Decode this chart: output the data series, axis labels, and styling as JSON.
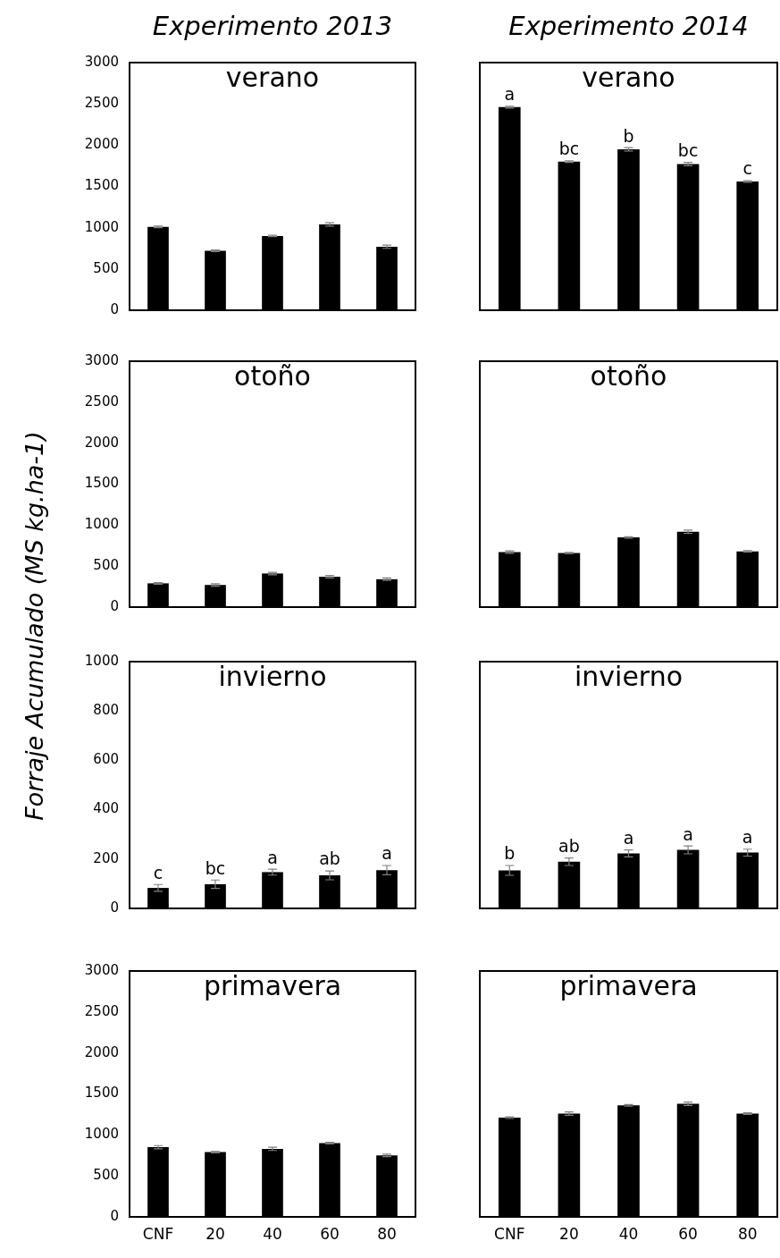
{
  "chart_data": [
    {
      "type": "bar",
      "title": "Experimento 2013",
      "subtitle": "verano",
      "categories": [
        "CNF",
        "20",
        "40",
        "60",
        "80"
      ],
      "values": [
        1010,
        720,
        900,
        1040,
        770
      ],
      "errors": [
        10,
        10,
        8,
        20,
        20
      ],
      "color": "#000000",
      "ylim": [
        0,
        3000
      ],
      "yticks": [
        0,
        500,
        1000,
        1500,
        2000,
        2500,
        3000
      ],
      "tick_labels": "y"
    },
    {
      "type": "bar",
      "title": "Experimento 2014",
      "subtitle": "verano",
      "categories": [
        "CNF",
        "20",
        "40",
        "60",
        "80"
      ],
      "values": [
        2460,
        1800,
        1950,
        1770,
        1560
      ],
      "errors": [
        10,
        10,
        20,
        20,
        10
      ],
      "value_labels": [
        "a",
        "bc",
        "b",
        "bc",
        "c"
      ],
      "color": "#000000",
      "ylim": [
        0,
        3000
      ],
      "yticks": [
        0,
        500,
        1000,
        1500,
        2000,
        2500,
        3000
      ],
      "tick_labels": false
    },
    {
      "type": "bar",
      "title": "otoño",
      "categories": [
        "CNF",
        "20",
        "40",
        "60",
        "80"
      ],
      "values": [
        290,
        270,
        410,
        370,
        340
      ],
      "errors": [
        10,
        15,
        15,
        15,
        15
      ],
      "color": "#000000",
      "ylim": [
        0,
        3000
      ],
      "yticks": [
        0,
        500,
        1000,
        1500,
        2000,
        2500,
        3000
      ],
      "tick_labels": "y"
    },
    {
      "type": "bar",
      "title": "otoño",
      "categories": [
        "CNF",
        "20",
        "40",
        "60",
        "80"
      ],
      "values": [
        670,
        660,
        850,
        920,
        680
      ],
      "errors": [
        15,
        8,
        8,
        20,
        8
      ],
      "color": "#000000",
      "ylim": [
        0,
        3000
      ],
      "yticks": [
        0,
        500,
        1000,
        1500,
        2000,
        2500,
        3000
      ],
      "tick_labels": false
    },
    {
      "type": "bar",
      "title": "invierno",
      "ylabel": "Forraje Acumulado (MS kg.ha-1)",
      "categories": [
        "CNF",
        "20",
        "40",
        "60",
        "80"
      ],
      "values": [
        83,
        98,
        147,
        134,
        155
      ],
      "errors": [
        14,
        17,
        12,
        18,
        19
      ],
      "value_labels": [
        "c",
        "bc",
        "a",
        "ab",
        "a"
      ],
      "color": "#000000",
      "ylim": [
        0,
        1000
      ],
      "yticks": [
        0,
        200,
        400,
        600,
        800,
        1000
      ],
      "tick_labels": "y"
    },
    {
      "type": "bar",
      "title": "invierno",
      "categories": [
        "CNF",
        "20",
        "40",
        "60",
        "80"
      ],
      "values": [
        154,
        189,
        223,
        237,
        226
      ],
      "errors": [
        20,
        15,
        14,
        16,
        14
      ],
      "value_labels": [
        "b",
        "ab",
        "a",
        "a",
        "a"
      ],
      "color": "#000000",
      "ylim": [
        0,
        1000
      ],
      "yticks": [
        0,
        200,
        400,
        600,
        800,
        1000
      ],
      "tick_labels": false
    },
    {
      "type": "bar",
      "title": "primavera",
      "categories": [
        "CNF",
        "20",
        "40",
        "60",
        "80"
      ],
      "values": [
        850,
        790,
        830,
        900,
        750
      ],
      "errors": [
        20,
        8,
        20,
        10,
        15
      ],
      "color": "#000000",
      "ylim": [
        0,
        3000
      ],
      "yticks": [
        0,
        500,
        1000,
        1500,
        2000,
        2500,
        3000
      ]
    },
    {
      "type": "bar",
      "title": "primavera",
      "categories": [
        "CNF",
        "20",
        "40",
        "60",
        "80"
      ],
      "values": [
        1210,
        1260,
        1360,
        1380,
        1260
      ],
      "errors": [
        10,
        20,
        10,
        20,
        10
      ],
      "color": "#000000",
      "ylim": [
        0,
        3000
      ],
      "yticks": [
        0,
        500,
        1000,
        1500,
        2000,
        2500,
        3000
      ],
      "tick_labels": "x"
    }
  ]
}
